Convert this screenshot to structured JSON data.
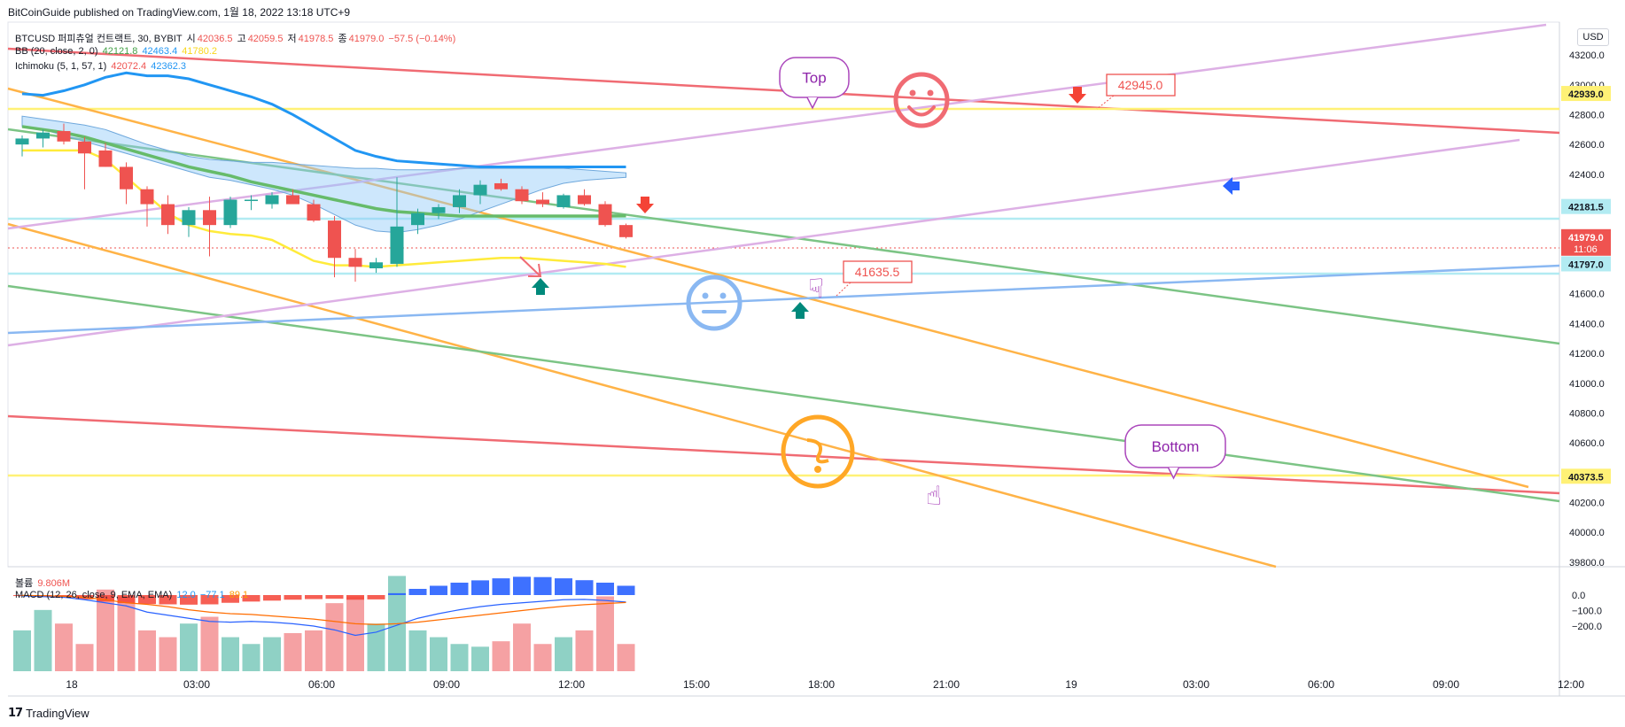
{
  "header": {
    "publisher_line": "BitCoinGuide published on TradingView.com, 1월 18, 2022 13:18 UTC+9"
  },
  "legend": {
    "symbol": "BTCUSD 퍼피츄얼 컨트랙트, 30, BYBIT",
    "o_label": "시",
    "o_value": "42036.5",
    "h_label": "고",
    "h_value": "42059.5",
    "l_label": "저",
    "l_value": "41978.5",
    "c_label": "종",
    "c_value": "41979.0",
    "change": "−57.5 (−0.14%)",
    "bb_label": "BB (20, close, 2, 0)",
    "bb_basis": "42121.8",
    "bb_upper": "42463.4",
    "bb_lower": "41780.2",
    "ichi_label": "Ichimoku (5, 1, 57, 1)",
    "ichi_v1": "42072.4",
    "ichi_v2": "42362.3",
    "vol_label": "볼륨",
    "vol_value": "9.806M",
    "macd_label": "MACD (12, 26, close, 9, EMA, EMA)",
    "macd_v1": "12.0",
    "macd_v2": "−77.1",
    "macd_v3": "89.1"
  },
  "currency": "USD",
  "footer": {
    "brand": "TradingView"
  },
  "colors": {
    "up": "#26a69a",
    "down": "#ef5350",
    "red_line": "#f06b73",
    "orange_line": "#ffb347",
    "green_line": "#7cc485",
    "purple_line": "#ddb0e5",
    "blue_line": "#8ab8f2",
    "yellow_line": "#fff176",
    "cyan_line": "#b2ebf2",
    "cloud": "#90caf9",
    "tenkan": "#2196f3",
    "bb_basis": "#66bb6a",
    "bb_lower": "#ffeb3b"
  },
  "chart_data": {
    "type": "candlestick",
    "title": "BTCUSD 퍼피츄얼 컨트랙트, 30, BYBIT",
    "y_ticks": [
      43200,
      43000,
      42800,
      42600,
      42400,
      42200,
      42000,
      41800,
      41600,
      41400,
      41200,
      41000,
      40800,
      40600,
      40400,
      40200,
      40000,
      39800
    ],
    "y_tick_labels": [
      "43200.0",
      "43000.0",
      "42800.0",
      "42600.0",
      "42400.0",
      "42200.0",
      "42000.0",
      "41800.0",
      "41600.0",
      "41400.0",
      "41200.0",
      "41000.0",
      "40800.0",
      "40600.0",
      "40400.0",
      "40200.0",
      "40000.0",
      "39800.0"
    ],
    "ylim": [
      39770,
      43420
    ],
    "x_ticks": [
      {
        "label": "18",
        "bar": 0
      },
      {
        "label": "03:00",
        "bar": 6
      },
      {
        "label": "06:00",
        "bar": 12
      },
      {
        "label": "09:00",
        "bar": 18
      },
      {
        "label": "12:00",
        "bar": 24
      },
      {
        "label": "15:00",
        "bar": 30
      },
      {
        "label": "18:00",
        "bar": 36
      },
      {
        "label": "21:00",
        "bar": 42
      },
      {
        "label": "19",
        "bar": 48
      },
      {
        "label": "03:00",
        "bar": 54
      },
      {
        "label": "06:00",
        "bar": 60
      },
      {
        "label": "09:00",
        "bar": 66
      },
      {
        "label": "12:00",
        "bar": 72
      },
      {
        "label": "15:00",
        "bar": 78
      },
      {
        "label": "18:00",
        "bar": 84
      }
    ],
    "price_badges": [
      {
        "value": 42939.0,
        "label": "42939.0",
        "color": "#fff176"
      },
      {
        "value": 42181.5,
        "label": "42181.5",
        "color": "#b2ebf2"
      },
      {
        "value": 41979.0,
        "label": "41979.0",
        "sub": "11:06",
        "color": "#ef5350"
      },
      {
        "value": 41797.0,
        "label": "41797.0",
        "color": "#b2ebf2"
      },
      {
        "value": 40373.5,
        "label": "40373.5",
        "color": "#fff176"
      }
    ],
    "candles": [
      {
        "o": 42600,
        "h": 42660,
        "l": 42520,
        "c": 42640
      },
      {
        "o": 42640,
        "h": 42700,
        "l": 42580,
        "c": 42680
      },
      {
        "o": 42690,
        "h": 42740,
        "l": 42600,
        "c": 42620
      },
      {
        "o": 42620,
        "h": 42650,
        "l": 42300,
        "c": 42540
      },
      {
        "o": 42560,
        "h": 42610,
        "l": 42450,
        "c": 42450
      },
      {
        "o": 42450,
        "h": 42480,
        "l": 42200,
        "c": 42300
      },
      {
        "o": 42300,
        "h": 42320,
        "l": 42050,
        "c": 42200
      },
      {
        "o": 42200,
        "h": 42260,
        "l": 42000,
        "c": 42060
      },
      {
        "o": 42060,
        "h": 42180,
        "l": 41980,
        "c": 42160
      },
      {
        "o": 42160,
        "h": 42250,
        "l": 41850,
        "c": 42060
      },
      {
        "o": 42060,
        "h": 42250,
        "l": 42040,
        "c": 42230
      },
      {
        "o": 42230,
        "h": 42260,
        "l": 42160,
        "c": 42230
      },
      {
        "o": 42200,
        "h": 42280,
        "l": 42170,
        "c": 42260
      },
      {
        "o": 42260,
        "h": 42300,
        "l": 42200,
        "c": 42200
      },
      {
        "o": 42200,
        "h": 42230,
        "l": 42080,
        "c": 42090
      },
      {
        "o": 42090,
        "h": 42120,
        "l": 41710,
        "c": 41840
      },
      {
        "o": 41840,
        "h": 41900,
        "l": 41680,
        "c": 41780
      },
      {
        "o": 41770,
        "h": 41840,
        "l": 41740,
        "c": 41810
      },
      {
        "o": 41800,
        "h": 42380,
        "l": 41780,
        "c": 42050
      },
      {
        "o": 42060,
        "h": 42170,
        "l": 42000,
        "c": 42140
      },
      {
        "o": 42140,
        "h": 42200,
        "l": 42100,
        "c": 42180
      },
      {
        "o": 42180,
        "h": 42300,
        "l": 42140,
        "c": 42260
      },
      {
        "o": 42260,
        "h": 42360,
        "l": 42200,
        "c": 42330
      },
      {
        "o": 42340,
        "h": 42370,
        "l": 42290,
        "c": 42300
      },
      {
        "o": 42300,
        "h": 42320,
        "l": 42200,
        "c": 42220
      },
      {
        "o": 42230,
        "h": 42280,
        "l": 42180,
        "c": 42200
      },
      {
        "o": 42180,
        "h": 42270,
        "l": 42170,
        "c": 42260
      },
      {
        "o": 42260,
        "h": 42300,
        "l": 42190,
        "c": 42200
      },
      {
        "o": 42200,
        "h": 42220,
        "l": 42050,
        "c": 42060
      },
      {
        "o": 42060,
        "h": 42070,
        "l": 41970,
        "c": 41979
      }
    ],
    "ichimoku_span_a": [
      42720,
      42700,
      42660,
      42620,
      42580,
      42540,
      42500,
      42460,
      42420,
      42380,
      42360,
      42330,
      42300,
      42260,
      42200,
      42130,
      42060,
      42020,
      42010,
      42030,
      42060,
      42100,
      42150,
      42200,
      42250,
      42300,
      42340,
      42360,
      42370,
      42380
    ],
    "ichimoku_span_b": [
      42790,
      42770,
      42750,
      42730,
      42700,
      42650,
      42600,
      42560,
      42520,
      42500,
      42490,
      42480,
      42480,
      42470,
      42460,
      42450,
      42440,
      42440,
      42430,
      42430,
      42430,
      42440,
      42440,
      42440,
      42440,
      42440,
      42440,
      42430,
      42420,
      42410
    ],
    "ichimoku_line": [
      42940,
      42930,
      42960,
      43000,
      43050,
      43080,
      43060,
      43060,
      43040,
      43000,
      42960,
      42920,
      42870,
      42800,
      42720,
      42640,
      42560,
      42520,
      42490,
      42480,
      42470,
      42460,
      42450,
      42450,
      42450,
      42450,
      42450,
      42450,
      42450,
      42450
    ],
    "bb_basis": [
      42720,
      42700,
      42680,
      42650,
      42610,
      42570,
      42530,
      42490,
      42450,
      42420,
      42390,
      42350,
      42320,
      42290,
      42260,
      42230,
      42200,
      42170,
      42150,
      42140,
      42130,
      42120,
      42120,
      42120,
      42120,
      42120,
      42120,
      42120,
      42120,
      42122
    ],
    "bb_lower": [
      42560,
      42560,
      42560,
      42560,
      42500,
      42380,
      42260,
      42140,
      42060,
      42020,
      42000,
      41990,
      41960,
      41890,
      41820,
      41790,
      41790,
      41780,
      41790,
      41800,
      41810,
      41820,
      41830,
      41840,
      41840,
      41830,
      41820,
      41810,
      41800,
      41780
    ],
    "volume": [
      0.3,
      0.45,
      0.35,
      0.2,
      0.6,
      0.55,
      0.3,
      0.25,
      0.35,
      0.4,
      0.25,
      0.2,
      0.25,
      0.28,
      0.3,
      0.5,
      0.55,
      0.35,
      0.7,
      0.3,
      0.25,
      0.2,
      0.18,
      0.22,
      0.35,
      0.2,
      0.25,
      0.3,
      0.55,
      0.2
    ],
    "macd_hist": [
      -6,
      -10,
      -18,
      -28,
      -42,
      -52,
      -58,
      -60,
      -62,
      -60,
      -50,
      -42,
      -36,
      -30,
      -26,
      -24,
      -30,
      -28,
      12,
      40,
      60,
      80,
      95,
      108,
      118,
      116,
      108,
      96,
      80,
      60
    ],
    "macd_line": [
      -5,
      -10,
      -14,
      -30,
      -50,
      -70,
      -110,
      -130,
      -150,
      -170,
      -175,
      -170,
      -175,
      -185,
      -200,
      -225,
      -260,
      -240,
      -195,
      -150,
      -120,
      -95,
      -75,
      -60,
      -50,
      -40,
      -30,
      -28,
      -35,
      -45
    ],
    "signal_line": [
      -2,
      -4,
      -8,
      -15,
      -30,
      -50,
      -60,
      -75,
      -95,
      -110,
      -120,
      -125,
      -135,
      -145,
      -155,
      -170,
      -185,
      -190,
      -185,
      -175,
      -160,
      -145,
      -130,
      -115,
      -100,
      -85,
      -72,
      -62,
      -55,
      -48
    ],
    "macd_axis": [
      {
        "value": 0,
        "label": "0.0"
      },
      {
        "value": -100,
        "label": "−100.0"
      },
      {
        "value": -200,
        "label": "−200.0"
      }
    ],
    "annotations": {
      "top_label": "Top",
      "bottom_label": "Bottom",
      "price_tag_high": "42945.0",
      "price_tag_low": "41635.5"
    }
  }
}
